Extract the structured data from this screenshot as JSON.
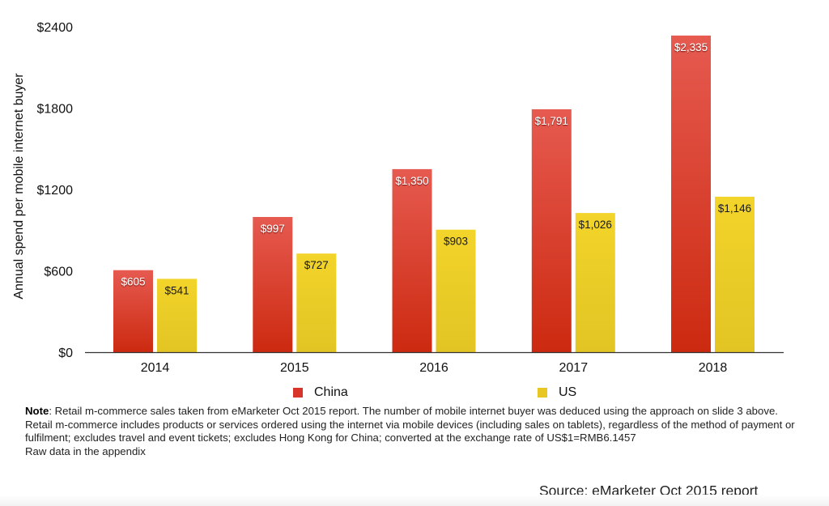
{
  "chart_data": {
    "type": "bar",
    "title": "",
    "xlabel": "",
    "ylabel": "Annual spend per mobile internet buyer",
    "ylim": [
      0,
      2400
    ],
    "yticks": [
      0,
      600,
      1200,
      1800,
      2400
    ],
    "ytick_labels": [
      "$0",
      "$600",
      "$1200",
      "$1800",
      "$2400"
    ],
    "categories": [
      "2014",
      "2015",
      "2016",
      "2017",
      "2018"
    ],
    "series": [
      {
        "name": "China",
        "color": "#d8352a",
        "values": [
          605,
          997,
          1350,
          1791,
          2335
        ],
        "labels": [
          "$605",
          "$997",
          "$1,350",
          "$1,791",
          "$2,335"
        ]
      },
      {
        "name": "US",
        "color": "#e8c724",
        "values": [
          541,
          727,
          903,
          1026,
          1146
        ],
        "labels": [
          "$541",
          "$727",
          "$903",
          "$1,026",
          "$1,146"
        ]
      }
    ],
    "grid": false,
    "legend_position": "bottom"
  },
  "notes": {
    "note_bold": "Note",
    "note_line1": ": Retail m-commerce sales taken from eMarketer Oct 2015 report. The number of mobile internet buyer was deduced using the approach on slide 3 above.",
    "note_line2": "Retail m-commerce includes products or services ordered using the internet via mobile devices (including sales on tablets), regardless of the method of payment or fulfilment; excludes travel and event tickets; excludes Hong Kong for China; converted at the exchange rate of US$1=RMB6.1457",
    "note_line3": "Raw data in the appendix"
  },
  "source": "Source: eMarketer Oct 2015 report"
}
